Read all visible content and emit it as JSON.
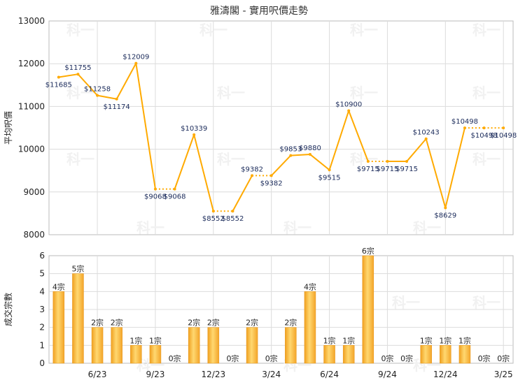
{
  "title": "雅濤閣 - 實用呎價走勢",
  "watermark": "科一",
  "chart_data": [
    {
      "type": "line",
      "ylabel": "平均呎價",
      "ylim": [
        8000,
        13000
      ],
      "yticks": [
        8000,
        9000,
        10000,
        11000,
        12000,
        13000
      ],
      "grid": true,
      "color": "#FFAA00",
      "x_tick_labels": [
        "6/23",
        "9/23",
        "12/23",
        "3/24",
        "6/24",
        "9/24",
        "12/24",
        "3/25"
      ],
      "months": [
        "4/23",
        "5/23",
        "6/23",
        "7/23",
        "8/23",
        "9/23",
        "10/23",
        "11/23",
        "12/23",
        "1/24",
        "2/24",
        "3/24",
        "4/24",
        "5/24",
        "6/24",
        "7/24",
        "8/24",
        "9/24",
        "10/24",
        "11/24",
        "12/24",
        "1/25",
        "2/25",
        "3/25"
      ],
      "values": [
        11685,
        11755,
        11258,
        11174,
        12009,
        9068,
        9068,
        10339,
        8552,
        8552,
        9382,
        9382,
        9853,
        9880,
        9515,
        10900,
        9715,
        9715,
        9715,
        10243,
        8629,
        10498,
        10498,
        10498
      ],
      "data_labels": [
        "$11685",
        "$11755",
        "$11258",
        "$11174",
        "$12009",
        "$9068",
        "$9068",
        "$10339",
        "$8552",
        "$8552",
        "$9382",
        "$9382",
        "$9853",
        "$9880",
        "$9515",
        "$10900",
        "$9715",
        "$9715",
        "$9715",
        "$10243",
        "$8629",
        "$10498",
        "$10498",
        "$10498"
      ],
      "carried_forward": [
        false,
        false,
        false,
        false,
        false,
        false,
        true,
        false,
        false,
        true,
        false,
        true,
        false,
        false,
        false,
        false,
        false,
        true,
        false,
        false,
        false,
        false,
        true,
        true
      ]
    },
    {
      "type": "bar",
      "ylabel": "成交宗數",
      "ylim": [
        0,
        6
      ],
      "yticks": [
        0,
        1,
        2,
        3,
        4,
        5,
        6
      ],
      "grid": true,
      "color": "#F5A623",
      "x_tick_labels": [
        "6/23",
        "9/23",
        "12/23",
        "3/24",
        "6/24",
        "9/24",
        "12/24",
        "3/25"
      ],
      "months": [
        "4/23",
        "5/23",
        "6/23",
        "7/23",
        "8/23",
        "9/23",
        "10/23",
        "11/23",
        "12/23",
        "1/24",
        "2/24",
        "3/24",
        "4/24",
        "5/24",
        "6/24",
        "7/24",
        "8/24",
        "9/24",
        "10/24",
        "11/24",
        "12/24",
        "1/25",
        "2/25",
        "3/25"
      ],
      "values": [
        4,
        5,
        2,
        2,
        1,
        1,
        0,
        2,
        2,
        0,
        2,
        0,
        2,
        4,
        1,
        1,
        6,
        0,
        0,
        1,
        1,
        1,
        0,
        0
      ],
      "data_labels": [
        "4宗",
        "5宗",
        "2宗",
        "2宗",
        "1宗",
        "1宗",
        "0宗",
        "2宗",
        "2宗",
        "0宗",
        "2宗",
        "0宗",
        "2宗",
        "4宗",
        "1宗",
        "1宗",
        "6宗",
        "0宗",
        "0宗",
        "1宗",
        "1宗",
        "1宗",
        "0宗",
        "0宗"
      ]
    }
  ]
}
